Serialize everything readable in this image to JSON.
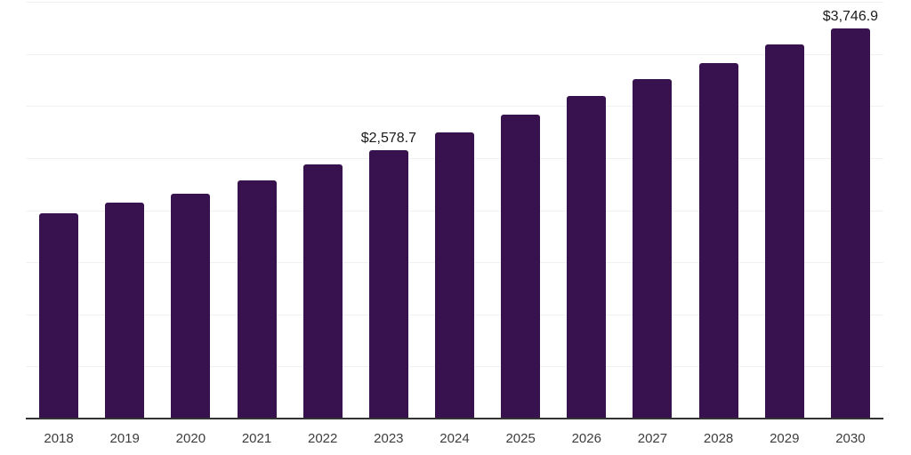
{
  "chart_data": {
    "type": "bar",
    "title": "",
    "xlabel": "",
    "ylabel": "",
    "categories": [
      "2018",
      "2019",
      "2020",
      "2021",
      "2022",
      "2023",
      "2024",
      "2025",
      "2026",
      "2027",
      "2028",
      "2029",
      "2030"
    ],
    "values": [
      1972,
      2073,
      2158,
      2285,
      2438,
      2578.7,
      2747,
      2918,
      3092,
      3257,
      3415,
      3588,
      3746.9
    ],
    "labeled_points": [
      {
        "category": "2023",
        "label": "$2,578.7"
      },
      {
        "category": "2030",
        "label": "$3,746.9"
      }
    ],
    "ylim": [
      0,
      4000
    ],
    "grid_step": 500,
    "grid": true,
    "legend": "none",
    "y_axis_ticks_visible": false,
    "colors": {
      "bar": "#37124F",
      "gridline": "#F1F1F3",
      "axis": "#333333",
      "value_label": "#1A1A1A",
      "tick_label": "#3D3D3D",
      "background": "#FFFFFF"
    }
  }
}
